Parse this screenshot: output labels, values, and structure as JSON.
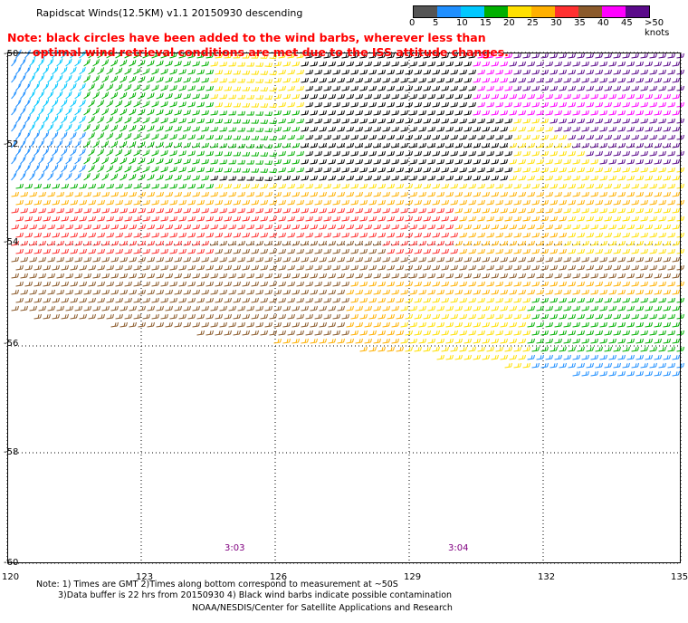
{
  "header": {
    "title": "Rapidscat Winds(12.5KM) v1.1 20150930 descending"
  },
  "note": {
    "line1": "Note: black circles have been added to the wind barbs, wherever less than",
    "line2": "optimal wind retrieval conditions are met due to the ISS attitude changes."
  },
  "colorbar": {
    "colors": [
      "#555555",
      "#1f8fff",
      "#00c8ff",
      "#00b000",
      "#ffe000",
      "#ffb000",
      "#ff3030",
      "#8b5a2b",
      "#ff00ff",
      "#5a0a8a"
    ],
    "ticks": [
      "0",
      "5",
      "10",
      "15",
      "20",
      "25",
      "30",
      "35",
      "40",
      "45",
      ">50 knots"
    ]
  },
  "map": {
    "lat_labels": [
      "-50",
      "-52",
      "-54",
      "-56",
      "-58",
      "-60"
    ],
    "lon_labels": [
      "120",
      "123",
      "126",
      "129",
      "132",
      "135"
    ],
    "time_labels": [
      "3:03",
      "3:04"
    ]
  },
  "footer": {
    "line1": "Note: 1) Times are GMT 2)Times along bottom correspond to measurement at ~50S",
    "line2": "3)Data buffer is 22 hrs from 20150930 4) Black wind barbs indicate possible contamination",
    "line3": "NOAA/NESDIS/Center for Satellite Applications and Research"
  }
}
